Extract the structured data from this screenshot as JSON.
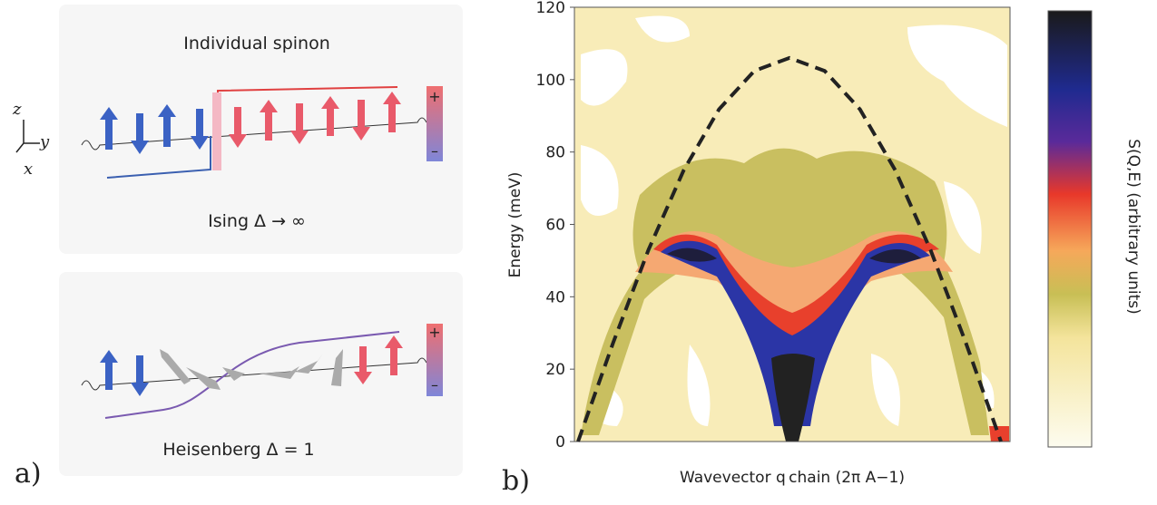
{
  "panel_a": {
    "label": "a)",
    "title": "Individual spinon",
    "axes": [
      "z",
      "y",
      "x"
    ],
    "ising_caption": "Ising Δ → ∞",
    "heisenberg_caption": "Heisenberg Δ = 1",
    "plus": "+",
    "minus": "–"
  },
  "chart_data": {
    "type": "contour",
    "panel_label": "b)",
    "ylabel": "Energy (meV)",
    "xlabel": "Wavevector q chain (2π A−1)",
    "colorbar_label": "S(Q,E) (arbitrary units)",
    "ylim": [
      0,
      120
    ],
    "yticks": [
      0,
      20,
      40,
      60,
      80,
      100,
      120
    ],
    "categories": [
      null,
      null,
      null,
      null,
      null,
      null,
      null,
      null,
      null,
      null,
      null,
      null,
      null
    ],
    "values": [
      0,
      27.4,
      53,
      75,
      91.8,
      102.4,
      106,
      102.4,
      91.8,
      75,
      53,
      27.4,
      0
    ],
    "line_color": "#222222"
  }
}
